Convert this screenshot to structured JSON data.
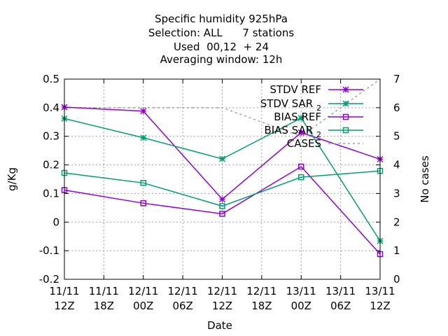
{
  "chart_data": {
    "type": "line",
    "title_lines": [
      "Specific humidity 925hPa",
      "Selection: ALL      7 stations",
      "Used  00,12  + 24",
      "Averaging window: 12h"
    ],
    "xlabel": "Date",
    "ylabel": "g/Kg",
    "y2label": "No cases",
    "xlim": [
      0,
      48
    ],
    "ylim": [
      -0.2,
      0.5
    ],
    "y2lim": [
      0,
      7
    ],
    "x_ticks": [
      {
        "x": 0,
        "line1": "11/11",
        "line2": "12Z"
      },
      {
        "x": 6,
        "line1": "11/11",
        "line2": "18Z"
      },
      {
        "x": 12,
        "line1": "12/11",
        "line2": "00Z"
      },
      {
        "x": 18,
        "line1": "12/11",
        "line2": "06Z"
      },
      {
        "x": 24,
        "line1": "12/11",
        "line2": "12Z"
      },
      {
        "x": 30,
        "line1": "12/11",
        "line2": "18Z"
      },
      {
        "x": 36,
        "line1": "13/11",
        "line2": "00Z"
      },
      {
        "x": 42,
        "line1": "13/11",
        "line2": "06Z"
      },
      {
        "x": 48,
        "line1": "13/11",
        "line2": "12Z"
      }
    ],
    "y_ticks": [
      {
        "v": -0.2,
        "label": "-0.2"
      },
      {
        "v": -0.1,
        "label": "-0.1"
      },
      {
        "v": 0,
        "label": "0"
      },
      {
        "v": 0.1,
        "label": "0.1"
      },
      {
        "v": 0.2,
        "label": "0.2"
      },
      {
        "v": 0.3,
        "label": "0.3"
      },
      {
        "v": 0.4,
        "label": "0.4"
      },
      {
        "v": 0.5,
        "label": "0.5"
      }
    ],
    "y2_ticks": [
      {
        "v": 0,
        "label": "0"
      },
      {
        "v": 1,
        "label": "1"
      },
      {
        "v": 2,
        "label": "2"
      },
      {
        "v": 3,
        "label": "3"
      },
      {
        "v": 4,
        "label": "4"
      },
      {
        "v": 5,
        "label": "5"
      },
      {
        "v": 6,
        "label": "6"
      },
      {
        "v": 7,
        "label": "7"
      }
    ],
    "grid": true,
    "legend_position": "top-right",
    "series": [
      {
        "name": "STDV REF",
        "subscript": "",
        "color": "#9400d3",
        "marker": "star",
        "axis": "y",
        "x": [
          0,
          12,
          24,
          36,
          48
        ],
        "values": [
          0.402,
          0.388,
          0.08,
          0.313,
          0.22
        ]
      },
      {
        "name": "STDV SAR ",
        "subscript": "2",
        "color": "#009e73",
        "marker": "star",
        "axis": "y",
        "x": [
          0,
          12,
          24,
          36,
          48
        ],
        "values": [
          0.362,
          0.295,
          0.221,
          0.364,
          -0.066
        ]
      },
      {
        "name": "BIAS REF",
        "subscript": "",
        "color": "#9400d3",
        "marker": "square",
        "axis": "y",
        "x": [
          0,
          12,
          24,
          36,
          48
        ],
        "values": [
          0.112,
          0.066,
          0.029,
          0.194,
          -0.112
        ]
      },
      {
        "name": "BIAS SAR ",
        "subscript": "2",
        "color": "#009e73",
        "marker": "square",
        "axis": "y",
        "x": [
          0,
          12,
          24,
          36,
          48
        ],
        "values": [
          0.172,
          0.137,
          0.056,
          0.157,
          0.179
        ]
      },
      {
        "name": "CASES",
        "subscript": "",
        "color": "#a0a0a0",
        "marker": "none",
        "axis": "y2",
        "dashed": true,
        "x": [
          0,
          12,
          24,
          36,
          48
        ],
        "values": [
          6,
          6,
          6,
          5,
          7
        ]
      }
    ]
  }
}
